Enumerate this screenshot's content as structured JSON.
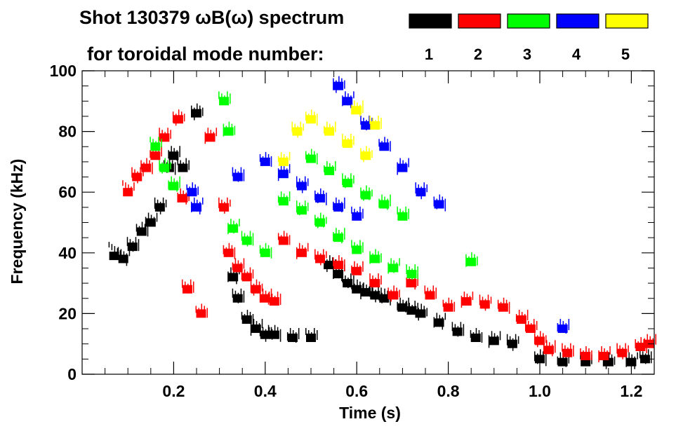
{
  "chart_data": {
    "type": "heatmap",
    "title_line1": "Shot 130379 ωB(ω) spectrum",
    "title_line2": "for toroidal mode number:",
    "xlabel": "Time (s)",
    "ylabel": "Frequency (kHz)",
    "xlim": [
      0.0,
      1.25
    ],
    "ylim": [
      0,
      100
    ],
    "x_ticks": [
      {
        "value": 0.2,
        "label": "0.2"
      },
      {
        "value": 0.4,
        "label": "0.4"
      },
      {
        "value": 0.6,
        "label": "0.6"
      },
      {
        "value": 0.8,
        "label": "0.8"
      },
      {
        "value": 1.0,
        "label": "1.0"
      },
      {
        "value": 1.2,
        "label": "1.2"
      }
    ],
    "y_ticks": [
      {
        "value": 0,
        "label": "0"
      },
      {
        "value": 20,
        "label": "20"
      },
      {
        "value": 40,
        "label": "40"
      },
      {
        "value": 60,
        "label": "60"
      },
      {
        "value": 80,
        "label": "80"
      },
      {
        "value": 100,
        "label": "100"
      }
    ],
    "legend": [
      {
        "n": 1,
        "label": "1",
        "color": "#000000"
      },
      {
        "n": 2,
        "label": "2",
        "color": "#ff0000"
      },
      {
        "n": 3,
        "label": "3",
        "color": "#00ff00"
      },
      {
        "n": 4,
        "label": "4",
        "color": "#0000ff"
      },
      {
        "n": 5,
        "label": "5",
        "color": "#ffff00"
      }
    ],
    "series": [
      {
        "name": "n=1",
        "color": "#000000",
        "points": [
          [
            0.07,
            39
          ],
          [
            0.09,
            38
          ],
          [
            0.11,
            42
          ],
          [
            0.13,
            47
          ],
          [
            0.15,
            50
          ],
          [
            0.17,
            55
          ],
          [
            0.19,
            68
          ],
          [
            0.2,
            72
          ],
          [
            0.22,
            68
          ],
          [
            0.25,
            86
          ],
          [
            0.33,
            32
          ],
          [
            0.34,
            25
          ],
          [
            0.36,
            18
          ],
          [
            0.38,
            15
          ],
          [
            0.4,
            13
          ],
          [
            0.42,
            13
          ],
          [
            0.46,
            12
          ],
          [
            0.5,
            12
          ],
          [
            0.54,
            36
          ],
          [
            0.56,
            33
          ],
          [
            0.58,
            30
          ],
          [
            0.6,
            28
          ],
          [
            0.62,
            27
          ],
          [
            0.64,
            26
          ],
          [
            0.66,
            25
          ],
          [
            0.7,
            22
          ],
          [
            0.72,
            21
          ],
          [
            0.74,
            20
          ],
          [
            0.78,
            17
          ],
          [
            0.82,
            14
          ],
          [
            0.86,
            12
          ],
          [
            0.9,
            11
          ],
          [
            0.94,
            10
          ],
          [
            1.0,
            5
          ],
          [
            1.05,
            4
          ],
          [
            1.1,
            4
          ],
          [
            1.15,
            4
          ],
          [
            1.2,
            4
          ],
          [
            1.23,
            5
          ]
        ]
      },
      {
        "name": "n=2",
        "color": "#ff0000",
        "points": [
          [
            0.1,
            60
          ],
          [
            0.12,
            65
          ],
          [
            0.14,
            68
          ],
          [
            0.16,
            72
          ],
          [
            0.18,
            78
          ],
          [
            0.21,
            84
          ],
          [
            0.22,
            58
          ],
          [
            0.23,
            28
          ],
          [
            0.26,
            20
          ],
          [
            0.28,
            78
          ],
          [
            0.31,
            55
          ],
          [
            0.32,
            40
          ],
          [
            0.34,
            35
          ],
          [
            0.36,
            32
          ],
          [
            0.38,
            28
          ],
          [
            0.4,
            25
          ],
          [
            0.42,
            24
          ],
          [
            0.44,
            44
          ],
          [
            0.48,
            40
          ],
          [
            0.52,
            38
          ],
          [
            0.56,
            36
          ],
          [
            0.6,
            34
          ],
          [
            0.64,
            30
          ],
          [
            0.68,
            26
          ],
          [
            0.72,
            30
          ],
          [
            0.76,
            26
          ],
          [
            0.8,
            22
          ],
          [
            0.84,
            24
          ],
          [
            0.88,
            23
          ],
          [
            0.92,
            22
          ],
          [
            0.96,
            18
          ],
          [
            0.98,
            15
          ],
          [
            1.0,
            11
          ],
          [
            1.02,
            8
          ],
          [
            1.06,
            7
          ],
          [
            1.1,
            6
          ],
          [
            1.14,
            6
          ],
          [
            1.18,
            7
          ],
          [
            1.22,
            9
          ],
          [
            1.24,
            10
          ]
        ]
      },
      {
        "name": "n=3",
        "color": "#00ff00",
        "points": [
          [
            0.16,
            75
          ],
          [
            0.18,
            68
          ],
          [
            0.2,
            62
          ],
          [
            0.31,
            90
          ],
          [
            0.32,
            80
          ],
          [
            0.33,
            48
          ],
          [
            0.36,
            44
          ],
          [
            0.4,
            40
          ],
          [
            0.44,
            57
          ],
          [
            0.48,
            54
          ],
          [
            0.52,
            50
          ],
          [
            0.56,
            45
          ],
          [
            0.6,
            41
          ],
          [
            0.64,
            38
          ],
          [
            0.68,
            35
          ],
          [
            0.72,
            33
          ],
          [
            0.5,
            71
          ],
          [
            0.54,
            67
          ],
          [
            0.58,
            63
          ],
          [
            0.62,
            59
          ],
          [
            0.66,
            56
          ],
          [
            0.7,
            52
          ],
          [
            0.85,
            37
          ]
        ]
      },
      {
        "name": "n=4",
        "color": "#0000ff",
        "points": [
          [
            0.24,
            60
          ],
          [
            0.25,
            55
          ],
          [
            0.34,
            65
          ],
          [
            0.4,
            70
          ],
          [
            0.44,
            66
          ],
          [
            0.48,
            62
          ],
          [
            0.52,
            58
          ],
          [
            0.56,
            55
          ],
          [
            0.6,
            52
          ],
          [
            0.56,
            95
          ],
          [
            0.58,
            90
          ],
          [
            0.62,
            82
          ],
          [
            0.66,
            75
          ],
          [
            0.7,
            68
          ],
          [
            0.74,
            60
          ],
          [
            0.78,
            56
          ],
          [
            1.05,
            15
          ]
        ]
      },
      {
        "name": "n=5",
        "color": "#ffff00",
        "points": [
          [
            0.44,
            70
          ],
          [
            0.47,
            80
          ],
          [
            0.5,
            84
          ],
          [
            0.54,
            80
          ],
          [
            0.58,
            76
          ],
          [
            0.62,
            72
          ],
          [
            0.6,
            87
          ],
          [
            0.64,
            82
          ]
        ]
      }
    ]
  }
}
